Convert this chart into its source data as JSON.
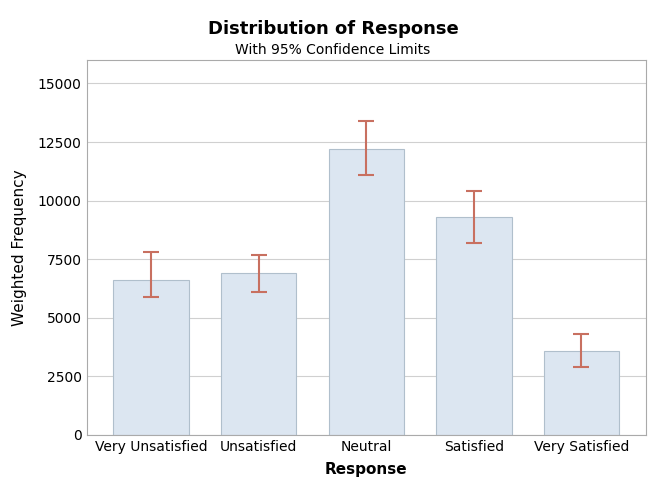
{
  "categories": [
    "Very Unsatisfied",
    "Unsatisfied",
    "Neutral",
    "Satisfied",
    "Very Satisfied"
  ],
  "values": [
    6600,
    6900,
    12200,
    9300,
    3600
  ],
  "ci_lower": [
    5900,
    6100,
    11100,
    8200,
    2900
  ],
  "ci_upper": [
    7800,
    7700,
    13400,
    10400,
    4300
  ],
  "bar_color": "#dce6f1",
  "bar_edgecolor": "#b0bfcc",
  "errorbar_color": "#c87060",
  "title": "Distribution of Response",
  "subtitle": "With 95% Confidence Limits",
  "xlabel": "Response",
  "ylabel": "Weighted Frequency",
  "ylim": [
    0,
    16000
  ],
  "yticks": [
    0,
    2500,
    5000,
    7500,
    10000,
    12500,
    15000
  ],
  "background_color": "#ffffff",
  "plot_bg_color": "#ffffff",
  "grid_color": "#d0d0d0",
  "title_fontsize": 13,
  "subtitle_fontsize": 10,
  "label_fontsize": 11,
  "tick_fontsize": 10,
  "bar_width": 0.7
}
